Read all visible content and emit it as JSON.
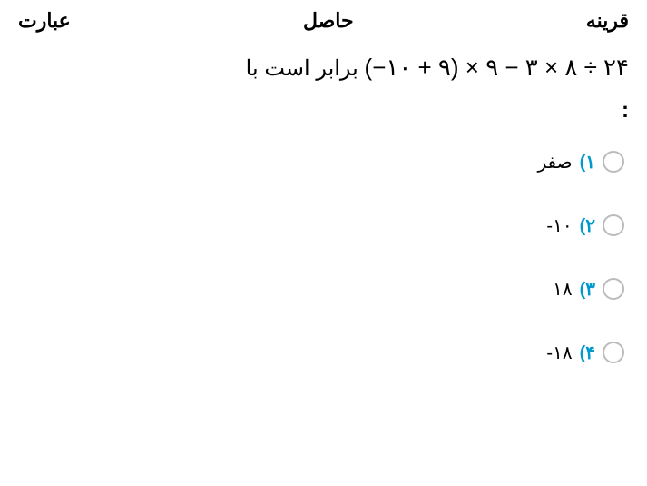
{
  "header": {
    "right": "قرینه",
    "center": "حاصل",
    "left": "عبارت"
  },
  "question": {
    "expression": "(−١٠ + ٩) × ٩ − ٣ × ٨ ÷ ٢۴",
    "suffix": "برابر است با",
    "colon": ":"
  },
  "options": [
    {
      "num": "١)",
      "text": "صفر",
      "ltr": false
    },
    {
      "num": "٢)",
      "text": "-١٠",
      "ltr": true
    },
    {
      "num": "٣)",
      "text": "١٨",
      "ltr": true
    },
    {
      "num": "۴)",
      "text": "-١٨",
      "ltr": true
    }
  ],
  "colors": {
    "option_number": "#0099cc",
    "text": "#000000",
    "radio_border": "#bbbbbb",
    "background": "#ffffff"
  },
  "typography": {
    "header_fontsize": 22,
    "question_fontsize": 24,
    "math_fontsize": 26,
    "option_fontsize": 20
  }
}
